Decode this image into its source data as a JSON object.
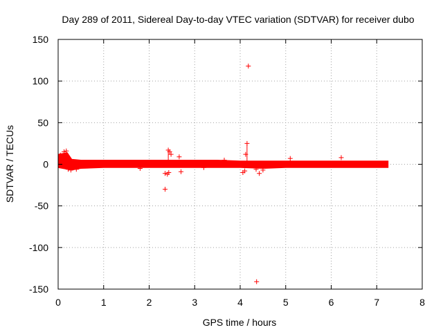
{
  "chart_data": {
    "type": "scatter",
    "title": "Day 289 of 2011, Sidereal Day-to-day VTEC variation (SDTVAR) for receiver dubo",
    "xlabel": "GPS time / hours",
    "ylabel": "SDTVAR / TECUs",
    "xlim": [
      0,
      8
    ],
    "ylim": [
      -150,
      150
    ],
    "x_ticks": [
      0,
      1,
      2,
      3,
      4,
      5,
      6,
      7,
      8
    ],
    "y_ticks": [
      -150,
      -100,
      -50,
      0,
      50,
      100,
      150
    ],
    "grid": true,
    "legend": "none",
    "marker": "+",
    "color": "#ff0000",
    "band": {
      "description": "dense band of points around zero",
      "x": [
        0.0,
        0.2,
        0.3,
        0.5,
        1.0,
        1.5,
        2.0,
        2.5,
        3.0,
        3.5,
        4.0,
        4.5,
        5.0,
        5.5,
        6.0,
        6.5,
        7.0,
        7.25
      ],
      "upper": [
        12,
        14,
        6,
        5,
        5,
        5,
        5,
        5,
        5,
        5,
        4,
        4,
        4,
        4,
        4,
        4,
        4,
        4
      ],
      "lower": [
        -4,
        -6,
        -7,
        -5,
        -4,
        -4,
        -4,
        -4,
        -4,
        -4,
        -4,
        -5,
        -4,
        -4,
        -4,
        -4,
        -4,
        -4
      ]
    },
    "series": [
      {
        "name": "outliers",
        "points": [
          {
            "x": 4.18,
            "y": 118
          },
          {
            "x": 4.36,
            "y": -141
          },
          {
            "x": 2.35,
            "y": -30
          },
          {
            "x": 4.15,
            "y": 25
          },
          {
            "x": 4.12,
            "y": 12
          },
          {
            "x": 2.42,
            "y": 17
          },
          {
            "x": 2.45,
            "y": 15
          },
          {
            "x": 2.48,
            "y": 12
          },
          {
            "x": 2.66,
            "y": 9
          },
          {
            "x": 2.7,
            "y": -9
          },
          {
            "x": 2.35,
            "y": -11
          },
          {
            "x": 2.4,
            "y": -12
          },
          {
            "x": 2.43,
            "y": -10
          },
          {
            "x": 4.06,
            "y": -10
          },
          {
            "x": 4.1,
            "y": -8
          },
          {
            "x": 4.35,
            "y": -6
          },
          {
            "x": 4.42,
            "y": -11
          },
          {
            "x": 4.5,
            "y": -7
          },
          {
            "x": 5.1,
            "y": 7
          },
          {
            "x": 6.22,
            "y": 8
          },
          {
            "x": 0.13,
            "y": 15
          },
          {
            "x": 0.18,
            "y": 16
          },
          {
            "x": 0.05,
            "y": 11
          },
          {
            "x": 0.22,
            "y": -6
          },
          {
            "x": 0.28,
            "y": -7
          },
          {
            "x": 0.4,
            "y": -6
          },
          {
            "x": 1.8,
            "y": -5
          },
          {
            "x": 3.65,
            "y": 5
          },
          {
            "x": 3.2,
            "y": -4
          }
        ]
      }
    ]
  }
}
